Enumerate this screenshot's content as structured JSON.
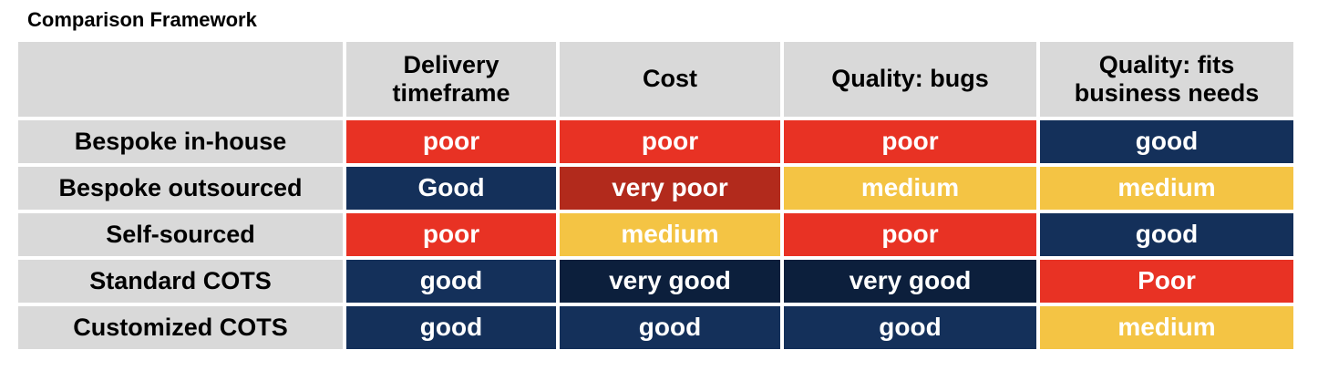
{
  "title": "Comparison Framework",
  "table": {
    "columns": [
      "",
      "Delivery timeframe",
      "Cost",
      "Quality: bugs",
      "Quality: fits business needs"
    ],
    "rows": [
      {
        "label": "Bespoke in-house",
        "cells": [
          "poor",
          "poor",
          "poor",
          "good"
        ]
      },
      {
        "label": "Bespoke outsourced",
        "cells": [
          "Good",
          "very poor",
          "medium",
          "medium"
        ]
      },
      {
        "label": "Self-sourced",
        "cells": [
          "poor",
          "medium",
          "poor",
          "good"
        ]
      },
      {
        "label": "Standard COTS",
        "cells": [
          "good",
          "very good",
          "very good",
          "Poor"
        ]
      },
      {
        "label": "Customized COTS",
        "cells": [
          "good",
          "good",
          "good",
          "medium"
        ]
      }
    ]
  },
  "colors": {
    "very poor": "#b22a1c",
    "poor": "#e83224",
    "medium": "#f4c444",
    "good": "#14305a",
    "very good": "#0c1f3c",
    "header_bg": "#d9d9d9"
  }
}
